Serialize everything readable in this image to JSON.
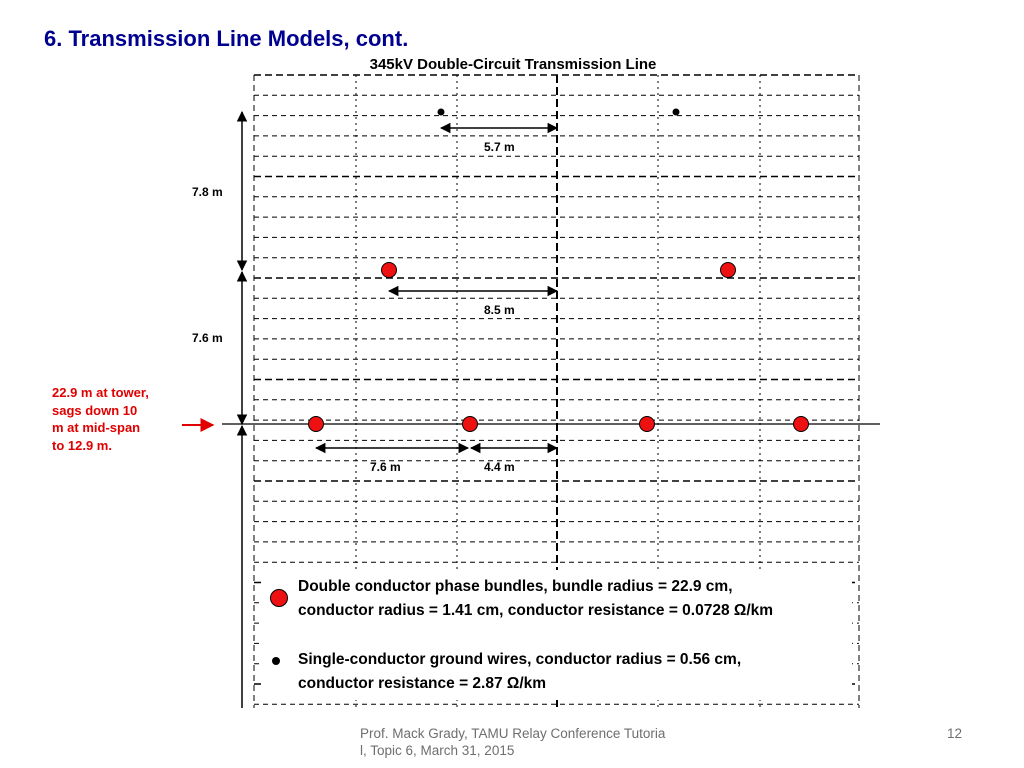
{
  "slide": {
    "title": "6.  Transmission Line Models, cont.",
    "footer": "Prof. Mack Grady, TAMU Relay Conference Tutorial, Topic 6, March 31, 2015",
    "page_number": "12"
  },
  "diagram": {
    "title": "345kV Double-Circuit Transmission Line",
    "dimensions": {
      "ground_wire_spacing": "5.7 m",
      "upper_phase_spacing": "8.5 m",
      "lower_inner_spacing": "7.6 m",
      "lower_outer_spacing": "4.4 m",
      "vertical_upper": "7.8 m",
      "vertical_lower": "7.6 m"
    },
    "sag_note": "22.9 m at tower,\n sags down 10\nm at mid-span\nto 12.9 m.",
    "legend": {
      "bundle_text": "Double conductor phase bundles, bundle radius = 22.9 cm,\nconductor radius = 1.41 cm, conductor resistance = 0.0728 Ω/km",
      "ground_text": "Single-conductor ground wires, conductor radius = 0.56 cm,\nconductor resistance = 2.87 Ω/km"
    },
    "colors": {
      "conductor": "#ee1111",
      "ground_wire": "#000000",
      "note": "#e00000",
      "title": "#000090"
    },
    "icons": {
      "bundle": "red-circle",
      "ground_wire": "black-dot",
      "arrow": "double-headed-arrow"
    }
  }
}
